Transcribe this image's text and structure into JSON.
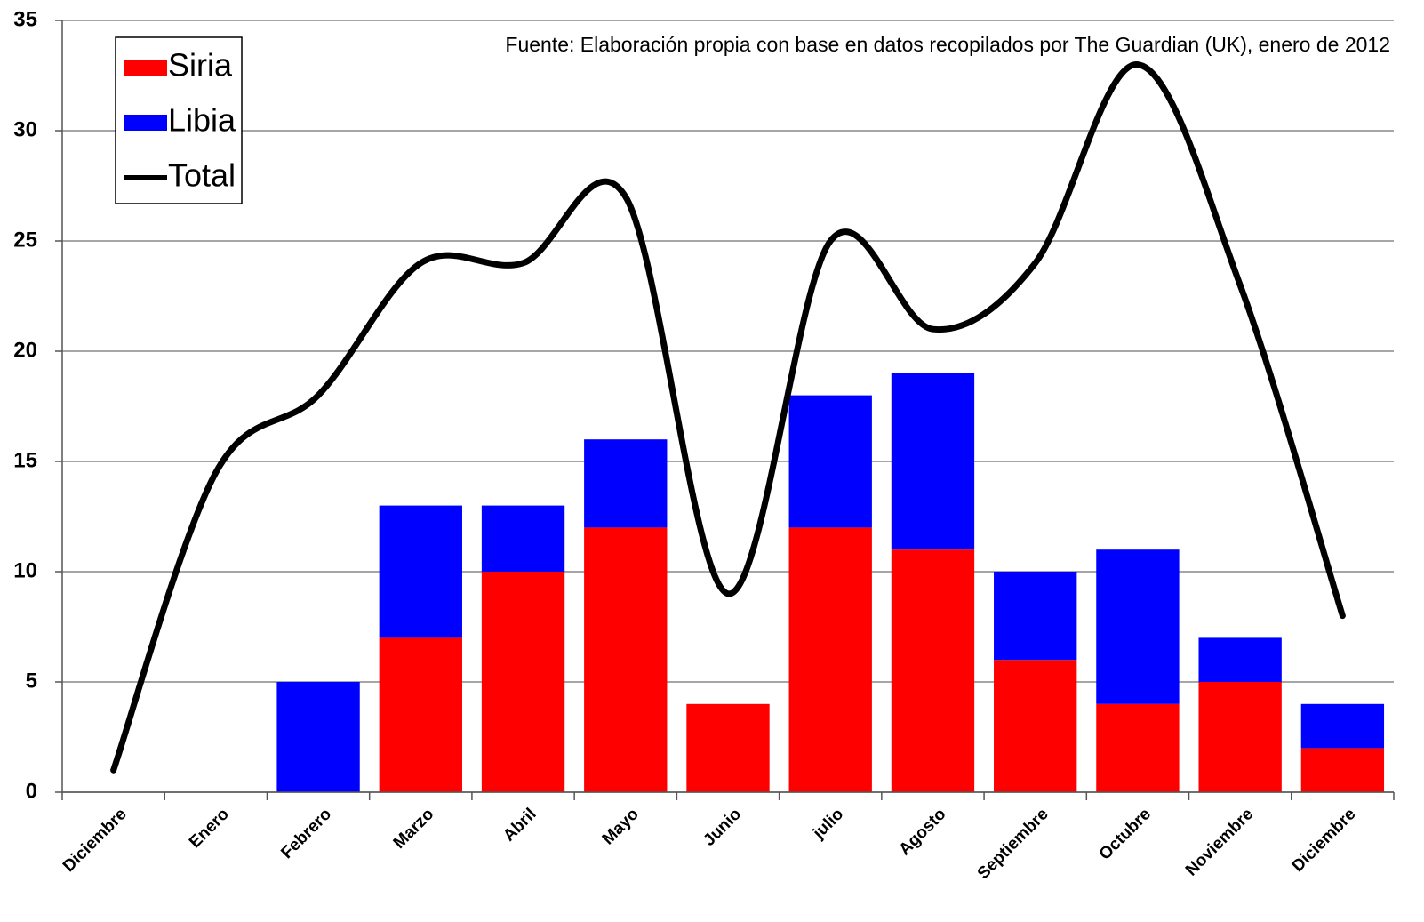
{
  "chart_data": {
    "type": "stacked_bar_line",
    "annotation": "Fuente: Elaboración propia con base en datos recopilados por The Guardian (UK), enero de 2012",
    "categories": [
      "Diciembre",
      "Enero",
      "Febrero",
      "Marzo",
      "Abril",
      "Mayo",
      "Junio",
      "julio",
      "Agosto",
      "Septiembre",
      "Octubre",
      "Noviembre",
      "Diciembre"
    ],
    "series": [
      {
        "name": "Siria",
        "color": "#ff0000",
        "values": [
          0,
          0,
          0,
          7,
          10,
          12,
          4,
          12,
          11,
          6,
          4,
          5,
          2
        ]
      },
      {
        "name": "Libia",
        "color": "#0000ff",
        "values": [
          0,
          0,
          5,
          6,
          3,
          4,
          0,
          6,
          8,
          4,
          7,
          2,
          2
        ]
      },
      {
        "name": "Total",
        "color": "#000000",
        "type": "line",
        "values": [
          1,
          14.5,
          18,
          24,
          24,
          27,
          9,
          25,
          21,
          24,
          33,
          23,
          8
        ]
      }
    ],
    "ylim": [
      0,
      35
    ],
    "yticks": [
      0,
      5,
      10,
      15,
      20,
      25,
      30,
      35
    ],
    "grid": true
  }
}
